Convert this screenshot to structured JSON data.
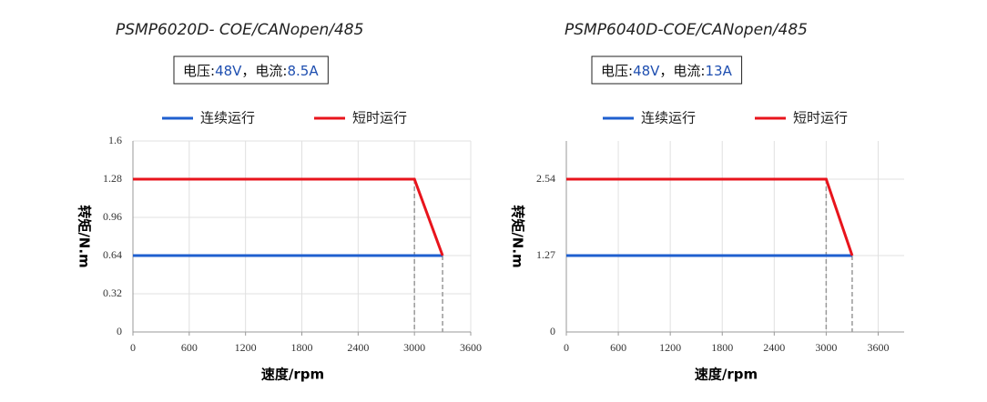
{
  "chart_data": [
    {
      "type": "line",
      "title": "PSMP6020D- COE/CANopen/485",
      "subtitle": {
        "voltage_label": "电压:",
        "voltage": "48V",
        "current_label": "，电流:",
        "current": "8.5A"
      },
      "x_label": "速度/rpm",
      "y_label": "转矩/N.m",
      "xlim": [
        0,
        3600
      ],
      "xticks": [
        0,
        600,
        1200,
        1800,
        2400,
        3000,
        3600
      ],
      "ylim": [
        0,
        1.6
      ],
      "yticks": [
        0,
        0.32,
        0.64,
        0.96,
        1.28,
        1.6
      ],
      "grid": true,
      "legend": "top",
      "series": [
        {
          "name": "连续运行",
          "color": "#1f5fcf",
          "x": [
            0,
            3300
          ],
          "values": [
            0.64,
            0.64
          ]
        },
        {
          "name": "短时运行",
          "color": "#e8141c",
          "x": [
            0,
            3000,
            3300
          ],
          "values": [
            1.28,
            1.28,
            0.64
          ]
        }
      ]
    },
    {
      "type": "line",
      "title": "PSMP6040D-COE/CANopen/485",
      "subtitle": {
        "voltage_label": "电压:",
        "voltage": "48V",
        "current_label": "，电流:",
        "current": "13A"
      },
      "x_label": "速度/rpm",
      "y_label": "转矩/N.m",
      "xlim": [
        0,
        3900
      ],
      "xticks": [
        0,
        600,
        1200,
        1800,
        2400,
        3000,
        3600
      ],
      "ylim": [
        0,
        3.175
      ],
      "yticks": [
        0,
        1.27,
        2.54
      ],
      "grid": true,
      "legend": "top",
      "series": [
        {
          "name": "连续运行",
          "color": "#1f5fcf",
          "x": [
            0,
            3300
          ],
          "values": [
            1.27,
            1.27
          ]
        },
        {
          "name": "短时运行",
          "color": "#e8141c",
          "x": [
            0,
            3000,
            3300
          ],
          "values": [
            2.54,
            2.54,
            1.27
          ]
        }
      ]
    }
  ]
}
